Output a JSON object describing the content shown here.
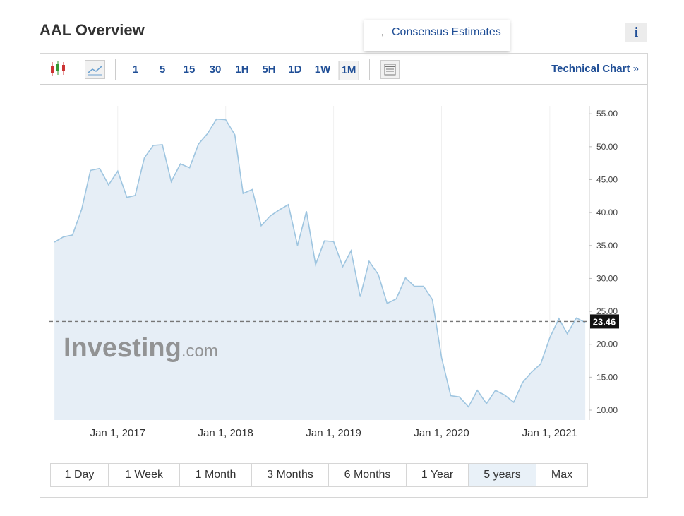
{
  "header": {
    "title": "AAL Overview",
    "info": "i"
  },
  "menu": {
    "arrow": "→",
    "item": "Consensus Estimates"
  },
  "toolbar": {
    "intervals": [
      "1",
      "5",
      "15",
      "30",
      "1H",
      "5H",
      "1D",
      "1W",
      "1M"
    ],
    "active": "1M",
    "link": "Technical Chart",
    "link_arrow": "»"
  },
  "ranges": {
    "buttons": [
      "1 Day",
      "1 Week",
      "1 Month",
      "3 Months",
      "6 Months",
      "1 Year",
      "5 years",
      "Max"
    ],
    "active": "5 years"
  },
  "chart_data": {
    "type": "line",
    "watermark": [
      "Investing",
      ".com"
    ],
    "x": [
      "2016-06-01",
      "2016-07-01",
      "2016-08-01",
      "2016-09-01",
      "2016-10-01",
      "2016-11-01",
      "2016-12-01",
      "2017-01-01",
      "2017-02-01",
      "2017-03-01",
      "2017-04-01",
      "2017-05-01",
      "2017-06-01",
      "2017-07-01",
      "2017-08-01",
      "2017-09-01",
      "2017-10-01",
      "2017-11-01",
      "2017-12-01",
      "2018-01-01",
      "2018-02-01",
      "2018-03-01",
      "2018-04-01",
      "2018-05-01",
      "2018-06-01",
      "2018-07-01",
      "2018-08-01",
      "2018-09-01",
      "2018-10-01",
      "2018-11-01",
      "2018-12-01",
      "2019-01-01",
      "2019-02-01",
      "2019-03-01",
      "2019-04-01",
      "2019-05-01",
      "2019-06-01",
      "2019-07-01",
      "2019-08-01",
      "2019-09-01",
      "2019-10-01",
      "2019-11-01",
      "2019-12-01",
      "2020-01-01",
      "2020-02-01",
      "2020-03-01",
      "2020-04-01",
      "2020-05-01",
      "2020-06-01",
      "2020-07-01",
      "2020-08-01",
      "2020-09-01",
      "2020-10-01",
      "2020-11-01",
      "2020-12-01",
      "2021-01-01",
      "2021-02-01",
      "2021-03-01",
      "2021-04-01",
      "2021-05-01"
    ],
    "series": [
      {
        "name": "AAL",
        "color": "#9ec5e0",
        "fill": "#e6eef6",
        "values": [
          35.5,
          36.3,
          36.6,
          40.5,
          46.4,
          46.7,
          44.2,
          46.3,
          42.3,
          42.6,
          48.3,
          50.2,
          50.3,
          44.7,
          47.4,
          46.8,
          50.4,
          52.0,
          54.2,
          54.1,
          51.8,
          42.9,
          43.5,
          38.0,
          39.5,
          40.4,
          41.2,
          35.0,
          40.2,
          32.1,
          35.7,
          35.6,
          31.8,
          34.2,
          27.2,
          32.6,
          30.6,
          26.2,
          26.9,
          30.1,
          28.8,
          28.8,
          26.8,
          18.0,
          12.2,
          12.0,
          10.5,
          13.0,
          11.0,
          13.0,
          12.3,
          11.2,
          14.2,
          15.8,
          17.0,
          21.0,
          23.9,
          21.6,
          24.0,
          23.3
        ]
      }
    ],
    "current_price": 23.46,
    "xlim": [
      "2016-05-15",
      "2021-05-15"
    ],
    "xticks": [
      {
        "value": "2017-01-01",
        "label": "Jan 1, 2017"
      },
      {
        "value": "2018-01-01",
        "label": "Jan 1, 2018"
      },
      {
        "value": "2019-01-01",
        "label": "Jan 1, 2019"
      },
      {
        "value": "2020-01-01",
        "label": "Jan 1, 2020"
      },
      {
        "value": "2021-01-01",
        "label": "Jan 1, 2021"
      }
    ],
    "ylim": [
      8.5,
      56.2
    ],
    "yticks": [
      {
        "value": 10,
        "label": "10.00"
      },
      {
        "value": 15,
        "label": "15.00"
      },
      {
        "value": 20,
        "label": "20.00"
      },
      {
        "value": 25,
        "label": "25.00"
      },
      {
        "value": 30,
        "label": "30.00"
      },
      {
        "value": 35,
        "label": "35.00"
      },
      {
        "value": 40,
        "label": "40.00"
      },
      {
        "value": 45,
        "label": "45.00"
      },
      {
        "value": 50,
        "label": "50.00"
      },
      {
        "value": 55,
        "label": "55.00"
      }
    ],
    "xgrid": true
  }
}
